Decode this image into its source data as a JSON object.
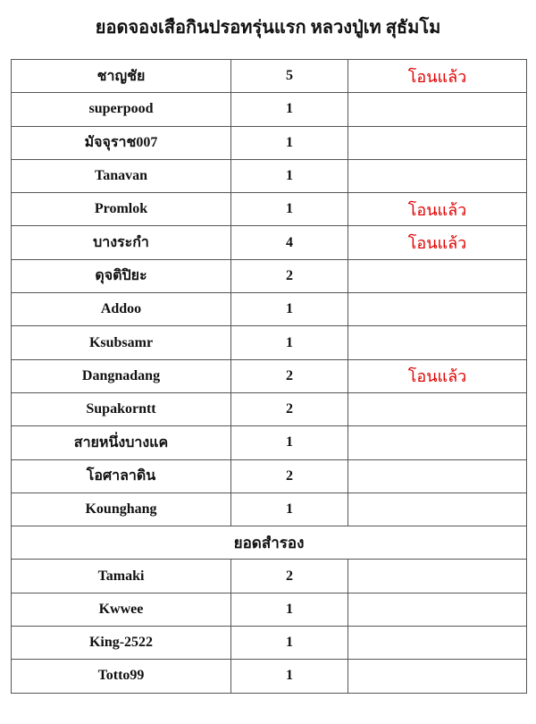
{
  "title": "ยอดจองเสือกินปรอทรุ่นแรก หลวงปู่เท สุธัมโม",
  "rows": [
    {
      "name": "ชาญชัย",
      "qty": "5",
      "status": "โอนแล้ว"
    },
    {
      "name": "superpood",
      "qty": "1",
      "status": ""
    },
    {
      "name": "มัจจุราช007",
      "qty": "1",
      "status": ""
    },
    {
      "name": "Tanavan",
      "qty": "1",
      "status": ""
    },
    {
      "name": "Promlok",
      "qty": "1",
      "status": "โอนแล้ว"
    },
    {
      "name": "บางระกำ",
      "qty": "4",
      "status": "โอนแล้ว"
    },
    {
      "name": "ดุจติปิยะ",
      "qty": "2",
      "status": ""
    },
    {
      "name": "Addoo",
      "qty": "1",
      "status": ""
    },
    {
      "name": "Ksubsamr",
      "qty": "1",
      "status": ""
    },
    {
      "name": "Dangnadang",
      "qty": "2",
      "status": "โอนแล้ว"
    },
    {
      "name": "Supakorntt",
      "qty": "2",
      "status": ""
    },
    {
      "name": "สายหนึ่งบางแค",
      "qty": "1",
      "status": ""
    },
    {
      "name": "โอศาลาดิน",
      "qty": "2",
      "status": ""
    },
    {
      "name": "Kounghang",
      "qty": "1",
      "status": ""
    }
  ],
  "reserve_label": "ยอดสำรอง",
  "reserve_rows": [
    {
      "name": "Tamaki",
      "qty": "2",
      "status": ""
    },
    {
      "name": "Kwwee",
      "qty": "1",
      "status": ""
    },
    {
      "name": "King-2522",
      "qty": "1",
      "status": ""
    },
    {
      "name": "Totto99",
      "qty": "1",
      "status": ""
    }
  ],
  "colors": {
    "status": "#e00000"
  }
}
